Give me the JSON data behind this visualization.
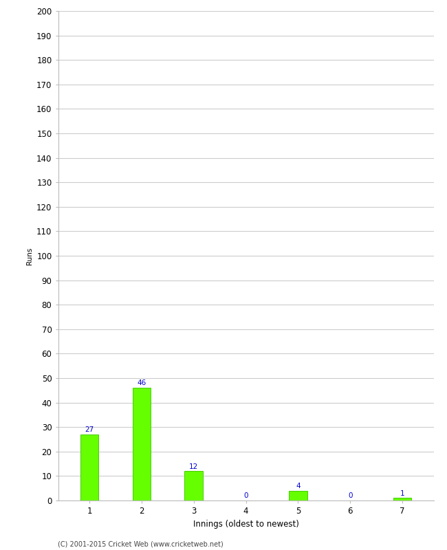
{
  "xlabel": "Innings (oldest to newest)",
  "ylabel": "Runs",
  "categories": [
    "1",
    "2",
    "3",
    "4",
    "5",
    "6",
    "7"
  ],
  "values": [
    27,
    46,
    12,
    0,
    4,
    0,
    1
  ],
  "bar_color": "#66ff00",
  "bar_edge_color": "#44cc00",
  "label_color": "#0000cc",
  "ylim": [
    0,
    200
  ],
  "yticks": [
    0,
    10,
    20,
    30,
    40,
    50,
    60,
    70,
    80,
    90,
    100,
    110,
    120,
    130,
    140,
    150,
    160,
    170,
    180,
    190,
    200
  ],
  "background_color": "#ffffff",
  "grid_color": "#cccccc",
  "footer_text": "(C) 2001-2015 Cricket Web (www.cricketweb.net)",
  "label_fontsize": 7.5,
  "axis_fontsize": 8.5,
  "ylabel_fontsize": 7.5,
  "xlabel_fontsize": 8.5,
  "bar_width": 0.35
}
